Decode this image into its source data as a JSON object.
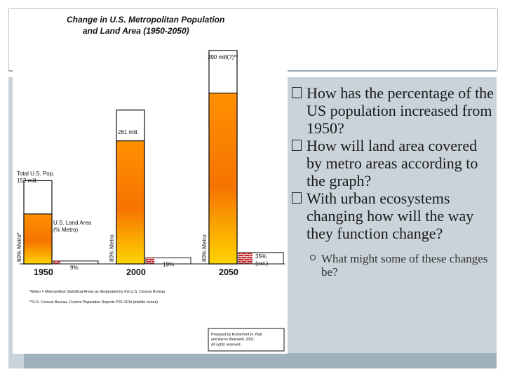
{
  "chart_data": {
    "type": "bar",
    "title": "Change in U.S. Metropolitan Population",
    "subtitle": "and Land Area (1950-2050)",
    "categories": [
      "1950",
      "2000",
      "2050"
    ],
    "series": [
      {
        "name": "Total U.S. Pop.",
        "values": [
          152,
          281,
          390
        ],
        "labels": [
          "Total U.S. Pop.\n152 mill.",
          "281 mill.",
          "390 mill(?)**"
        ]
      },
      {
        "name": "% Metro",
        "values": [
          60,
          80,
          80
        ],
        "labels": [
          "60% Metro*",
          "80% Metro",
          "80% Metro"
        ]
      },
      {
        "name": "U.S. Land Area (% Metro)",
        "values": [
          9,
          19,
          35
        ],
        "labels": [
          "9%",
          "19%",
          "35%\n(est.)"
        ]
      }
    ],
    "legend_label": "U.S. Land Area\n(% Metro)",
    "footnotes": [
      "*Metro = Metropolitan Statistical Areas as designated by the U.S. Census Bureau",
      "**U.S. Census Bureau, Current Population Reports P25-1104 (middle series)"
    ],
    "credit": "Prepared by Rutherford H. Platt\nand Aaron Weinseth, 2001.\nAll rights reserved.",
    "colors": {
      "pop_top": "#ffd200",
      "pop_bottom": "#ef6a00",
      "land": "#c0262a",
      "outline": "#111111"
    }
  },
  "bullets": [
    "How has the percentage of the US population increased from 1950?",
    "How will land area covered by metro areas according to the graph?",
    "With urban ecosystems changing how will the way they function change?"
  ],
  "sub_bullets": [
    "What might some of these changes be?"
  ]
}
